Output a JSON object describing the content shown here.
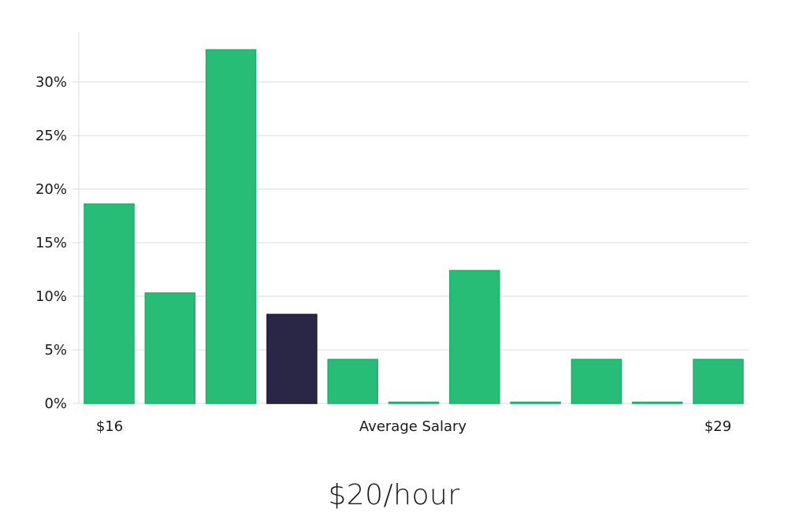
{
  "chart_data": {
    "type": "bar",
    "xlabel": "Average Salary",
    "x_range_labels": {
      "min": "$16",
      "max": "$29"
    },
    "y_unit": "%",
    "ylim": [
      0,
      34
    ],
    "yticks": [
      0,
      5,
      10,
      15,
      20,
      25,
      30
    ],
    "ytick_labels": [
      "0%",
      "5%",
      "10%",
      "15%",
      "20%",
      "25%",
      "30%"
    ],
    "grid": true,
    "values": [
      18.6,
      10.3,
      33.0,
      8.3,
      4.1,
      0,
      12.4,
      0,
      4.1,
      0,
      4.1
    ],
    "highlight_index": 3
  },
  "colors": {
    "bar": "#27bd76",
    "bar_stroke": "#1fae6b",
    "highlight": "#2a2746",
    "highlight_stroke": "#1a1836",
    "grid": "#dcdcdc",
    "text": "#1a1a1a"
  },
  "summary": {
    "average_pay": "$20/hour"
  }
}
